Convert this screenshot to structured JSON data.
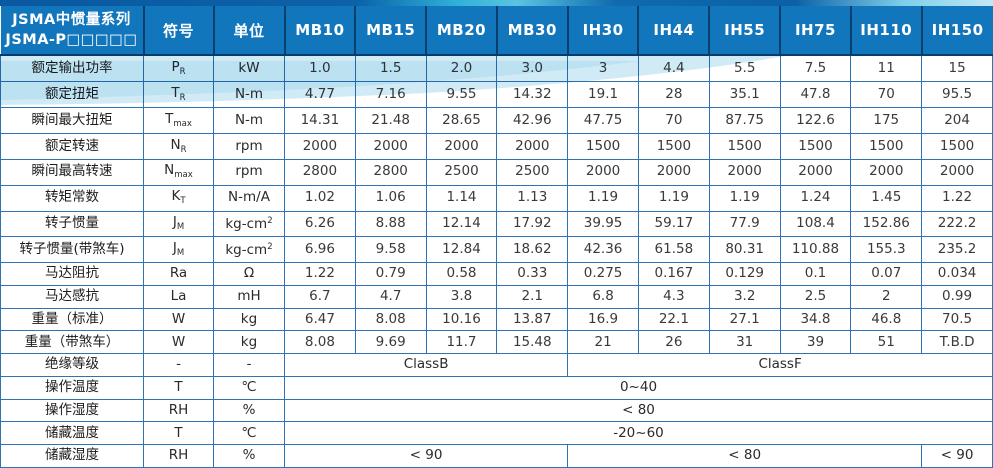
{
  "table_title": {
    "line1": "JSMA中惯量系列",
    "line2": "JSMA-P□□□□□"
  },
  "columns": {
    "symbol_header": "符号",
    "unit_header": "单位",
    "models": [
      "MB10",
      "MB15",
      "MB20",
      "MB30",
      "IH30",
      "IH44",
      "IH55",
      "IH75",
      "IH110",
      "IH150"
    ]
  },
  "rows": [
    {
      "label": "额定输出功率",
      "symbol": {
        "base": "P",
        "sub": "R"
      },
      "unit": {
        "text": "kW"
      },
      "values": [
        "1.0",
        "1.5",
        "2.0",
        "3.0",
        "3",
        "4.4",
        "5.5",
        "7.5",
        "11",
        "15"
      ]
    },
    {
      "label": "额定扭矩",
      "symbol": {
        "base": "T",
        "sub": "R"
      },
      "unit": {
        "text": "N-m"
      },
      "values": [
        "4.77",
        "7.16",
        "9.55",
        "14.32",
        "19.1",
        "28",
        "35.1",
        "47.8",
        "70",
        "95.5"
      ]
    },
    {
      "label": "瞬间最大扭矩",
      "symbol": {
        "base": "T",
        "sub": "max"
      },
      "unit": {
        "text": "N-m"
      },
      "values": [
        "14.31",
        "21.48",
        "28.65",
        "42.96",
        "47.75",
        "70",
        "87.75",
        "122.6",
        "175",
        "204"
      ]
    },
    {
      "label": "额定转速",
      "symbol": {
        "base": "N",
        "sub": "R"
      },
      "unit": {
        "text": "rpm"
      },
      "values": [
        "2000",
        "2000",
        "2000",
        "2000",
        "1500",
        "1500",
        "1500",
        "1500",
        "1500",
        "1500"
      ]
    },
    {
      "label": "瞬间最高转速",
      "symbol": {
        "base": "N",
        "sub": "max"
      },
      "unit": {
        "text": "rpm"
      },
      "values": [
        "2800",
        "2800",
        "2500",
        "2500",
        "2000",
        "2000",
        "2000",
        "2000",
        "2000",
        "2000"
      ]
    },
    {
      "label": "转矩常数",
      "symbol": {
        "base": "K",
        "sub": "T"
      },
      "unit": {
        "text": "N-m/A"
      },
      "values": [
        "1.02",
        "1.06",
        "1.14",
        "1.13",
        "1.19",
        "1.19",
        "1.19",
        "1.24",
        "1.45",
        "1.22"
      ]
    },
    {
      "label": "转子惯量",
      "symbol": {
        "base": "J",
        "sub": "M"
      },
      "unit": {
        "text": "kg-cm",
        "sup": "2"
      },
      "values": [
        "6.26",
        "8.88",
        "12.14",
        "17.92",
        "39.95",
        "59.17",
        "77.9",
        "108.4",
        "152.86",
        "222.2"
      ]
    },
    {
      "label": "转子惯量(带煞车)",
      "symbol": {
        "base": "J",
        "sub": "M"
      },
      "unit": {
        "text": "kg-cm",
        "sup": "2"
      },
      "values": [
        "6.96",
        "9.58",
        "12.84",
        "18.62",
        "42.36",
        "61.58",
        "80.31",
        "110.88",
        "155.3",
        "235.2"
      ]
    },
    {
      "label": "马达阻抗",
      "symbol": {
        "base": "Ra"
      },
      "unit": {
        "text": "Ω"
      },
      "values": [
        "1.22",
        "0.79",
        "0.58",
        "0.33",
        "0.275",
        "0.167",
        "0.129",
        "0.1",
        "0.07",
        "0.034"
      ]
    },
    {
      "label": "马达感抗",
      "symbol": {
        "base": "La"
      },
      "unit": {
        "text": "mH"
      },
      "values": [
        "6.7",
        "4.7",
        "3.8",
        "2.1",
        "6.8",
        "4.3",
        "3.2",
        "2.5",
        "2",
        "0.99"
      ]
    },
    {
      "label": "重量（标准）",
      "symbol": {
        "base": "W"
      },
      "unit": {
        "text": "kg"
      },
      "values": [
        "6.47",
        "8.08",
        "10.16",
        "13.87",
        "16.9",
        "22.1",
        "27.1",
        "34.8",
        "46.8",
        "70.5"
      ]
    },
    {
      "label": "重量（带煞车）",
      "symbol": {
        "base": "W"
      },
      "unit": {
        "text": "kg"
      },
      "values": [
        "8.08",
        "9.69",
        "11.7",
        "15.48",
        "21",
        "26",
        "31",
        "39",
        "51",
        "T.B.D"
      ]
    },
    {
      "label": "绝缘等级",
      "symbol": {
        "base": "-"
      },
      "unit": {
        "text": "-"
      },
      "spans": [
        {
          "text": "ClassB",
          "cols": 4
        },
        {
          "text": "ClassF",
          "cols": 6
        }
      ]
    },
    {
      "label": "操作温度",
      "symbol": {
        "base": "T"
      },
      "unit": {
        "text": "℃"
      },
      "spans": [
        {
          "text": "0~40",
          "cols": 10
        }
      ]
    },
    {
      "label": "操作湿度",
      "symbol": {
        "base": "RH"
      },
      "unit": {
        "text": "%"
      },
      "spans": [
        {
          "text": "< 80",
          "cols": 10
        }
      ]
    },
    {
      "label": "储藏温度",
      "symbol": {
        "base": "T"
      },
      "unit": {
        "text": "℃"
      },
      "spans": [
        {
          "text": "-20~60",
          "cols": 10
        }
      ]
    },
    {
      "label": "储藏湿度",
      "symbol": {
        "base": "RH"
      },
      "unit": {
        "text": "%"
      },
      "spans": [
        {
          "text": "< 90",
          "cols": 4
        },
        {
          "text": "< 80",
          "cols": 5
        },
        {
          "text": "< 90",
          "cols": 1
        }
      ]
    }
  ],
  "colors": {
    "header_bg": "#1276bd",
    "header_separator": "#0a3e6b",
    "body_border": "#2e74b5",
    "value_text": "#3a3a3a",
    "swoosh_light": "#c8e6f4",
    "swoosh_mid": "#a5d6ec",
    "topbar_dark": "#0b62a8",
    "topbar_cyan": "#2fb1d8"
  }
}
